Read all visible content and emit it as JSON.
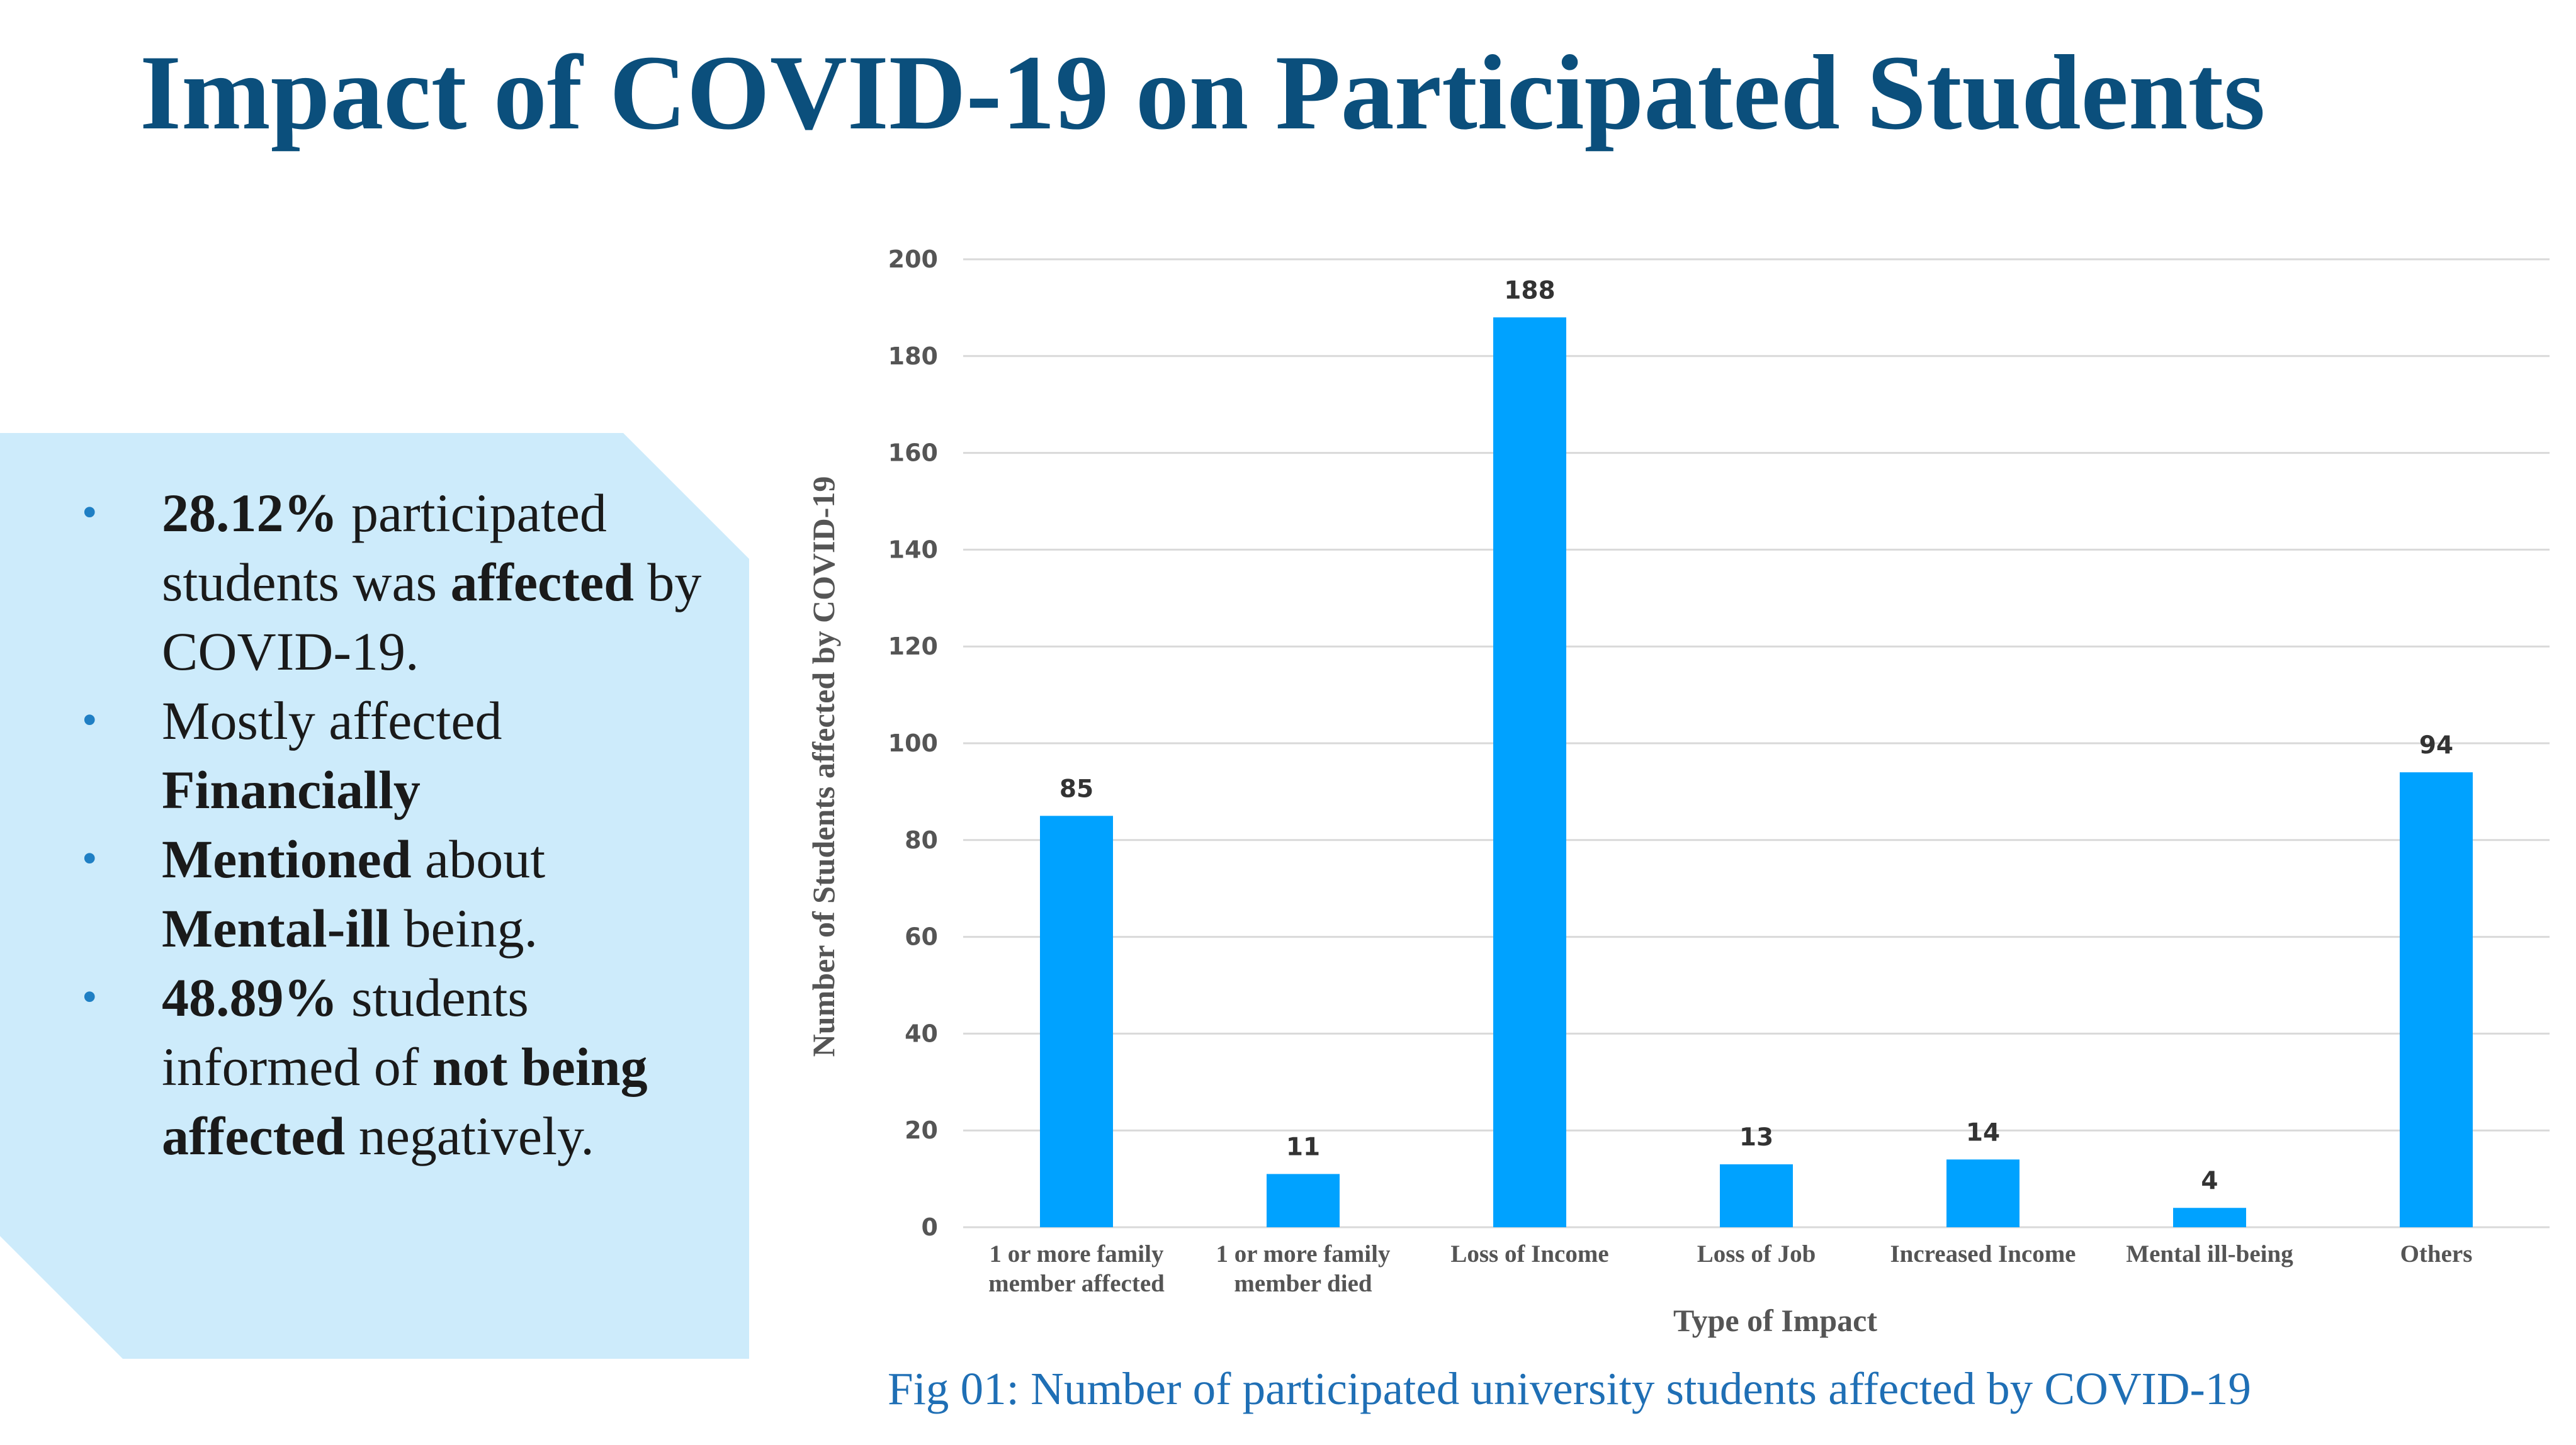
{
  "slide": {
    "title": "Impact of COVID-19 on Participated Students",
    "caption": "Fig 01: Number of participated university students affected by COVID-19"
  },
  "bullets": [
    [
      {
        "text": "28.12%",
        "bold": true
      },
      {
        "text": " participated students was ",
        "bold": false
      },
      {
        "text": "affected",
        "bold": true
      },
      {
        "text": " by COVID-19.",
        "bold": false
      }
    ],
    [
      {
        "text": "Mostly affected ",
        "bold": false
      },
      {
        "text": "Financially",
        "bold": true
      }
    ],
    [
      {
        "text": "Mentioned",
        "bold": true
      },
      {
        "text": " about ",
        "bold": false
      },
      {
        "text": "Mental-ill",
        "bold": true
      },
      {
        "text": " being.",
        "bold": false
      }
    ],
    [
      {
        "text": "48.89%",
        "bold": true
      },
      {
        "text": " students informed of ",
        "bold": false
      },
      {
        "text": "not being affected",
        "bold": true
      },
      {
        "text": " negatively.",
        "bold": false
      }
    ]
  ],
  "bullet_glyph": "•",
  "chart_data": {
    "type": "bar",
    "categories": [
      [
        "1 or more family",
        "member affected"
      ],
      [
        "1 or more family",
        "member died"
      ],
      [
        "Loss of Income"
      ],
      [
        "Loss of Job"
      ],
      [
        "Increased Income"
      ],
      [
        "Mental ill-being"
      ],
      [
        "Others"
      ]
    ],
    "values": [
      85,
      11,
      188,
      13,
      14,
      4,
      94
    ],
    "ylim": [
      0,
      200
    ],
    "yticks": [
      0,
      20,
      40,
      60,
      80,
      100,
      120,
      140,
      160,
      180,
      200
    ],
    "xlabel": "Type of Impact",
    "ylabel": "Number of Students affected by  COVID-19",
    "grid": true,
    "data_labels": true,
    "bar_color": "#00A2FF",
    "grid_color": "#D9D9D9"
  }
}
